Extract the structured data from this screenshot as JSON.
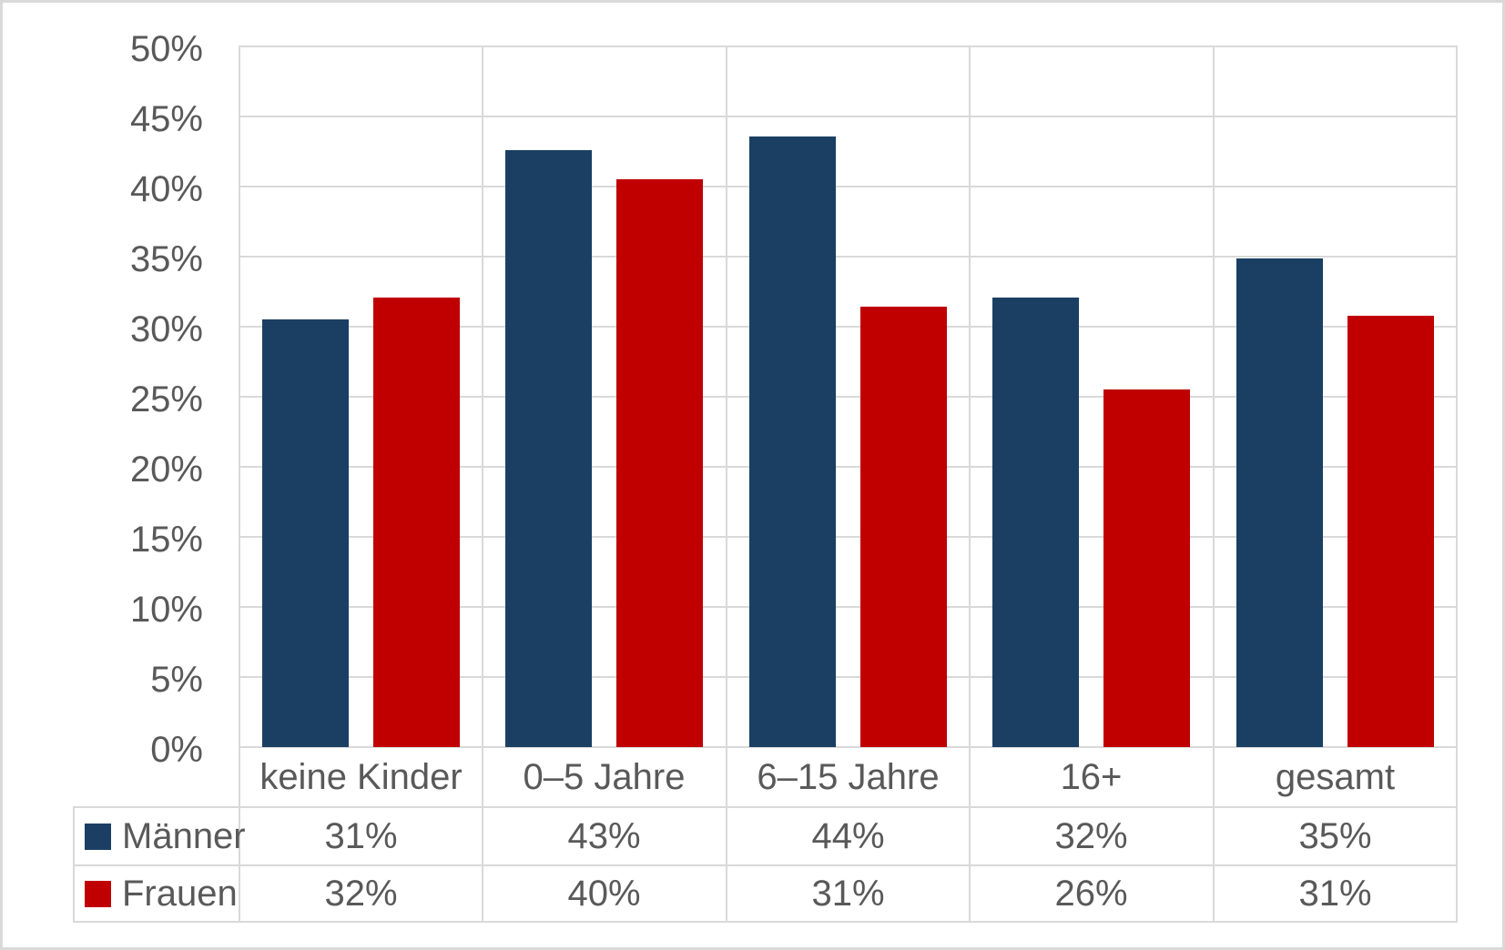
{
  "chart_data": {
    "type": "bar",
    "title": "",
    "categories": [
      "keine Kinder",
      "0–5 Jahre",
      "6–15 Jahre",
      "16+",
      "gesamt"
    ],
    "series": [
      {
        "name": "Männer",
        "key": "maenner",
        "color": "#1A3F63",
        "values": [
          30.5,
          42.6,
          43.6,
          32.1,
          34.9
        ],
        "table_labels": [
          "31%",
          "43%",
          "44%",
          "32%",
          "35%"
        ]
      },
      {
        "name": "Frauen",
        "key": "frauen",
        "color": "#C00000",
        "values": [
          32.1,
          40.5,
          31.4,
          25.5,
          30.8
        ],
        "table_labels": [
          "32%",
          "40%",
          "31%",
          "26%",
          "31%"
        ]
      }
    ],
    "y_axis": {
      "min": 0,
      "max": 50,
      "step": 5,
      "tick_labels": [
        "0%",
        "5%",
        "10%",
        "15%",
        "20%",
        "25%",
        "30%",
        "35%",
        "40%",
        "45%",
        "50%"
      ]
    },
    "grid": true,
    "legend_position": "data-table-left",
    "data_table_shown": true
  },
  "colors": {
    "text": "#595959",
    "gridline": "#D9D9D9",
    "frame_border": "#D9D9D9",
    "background": "#FFFFFF"
  }
}
